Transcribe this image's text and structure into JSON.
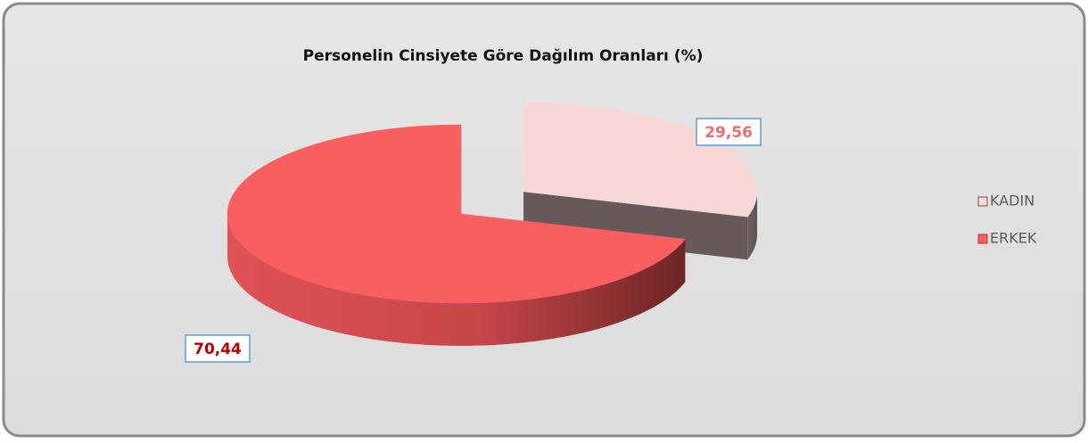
{
  "chart_data": {
    "type": "pie",
    "title": "Personelin  Cinsiyete Göre Dağılım Oranları (%)",
    "categories": [
      "KADIN",
      "ERKEK"
    ],
    "values": [
      29.56,
      70.44
    ],
    "value_labels": [
      "29,56",
      "70,44"
    ],
    "colors": [
      "#f9d7d7",
      "#f95e61"
    ],
    "legend": "right"
  }
}
